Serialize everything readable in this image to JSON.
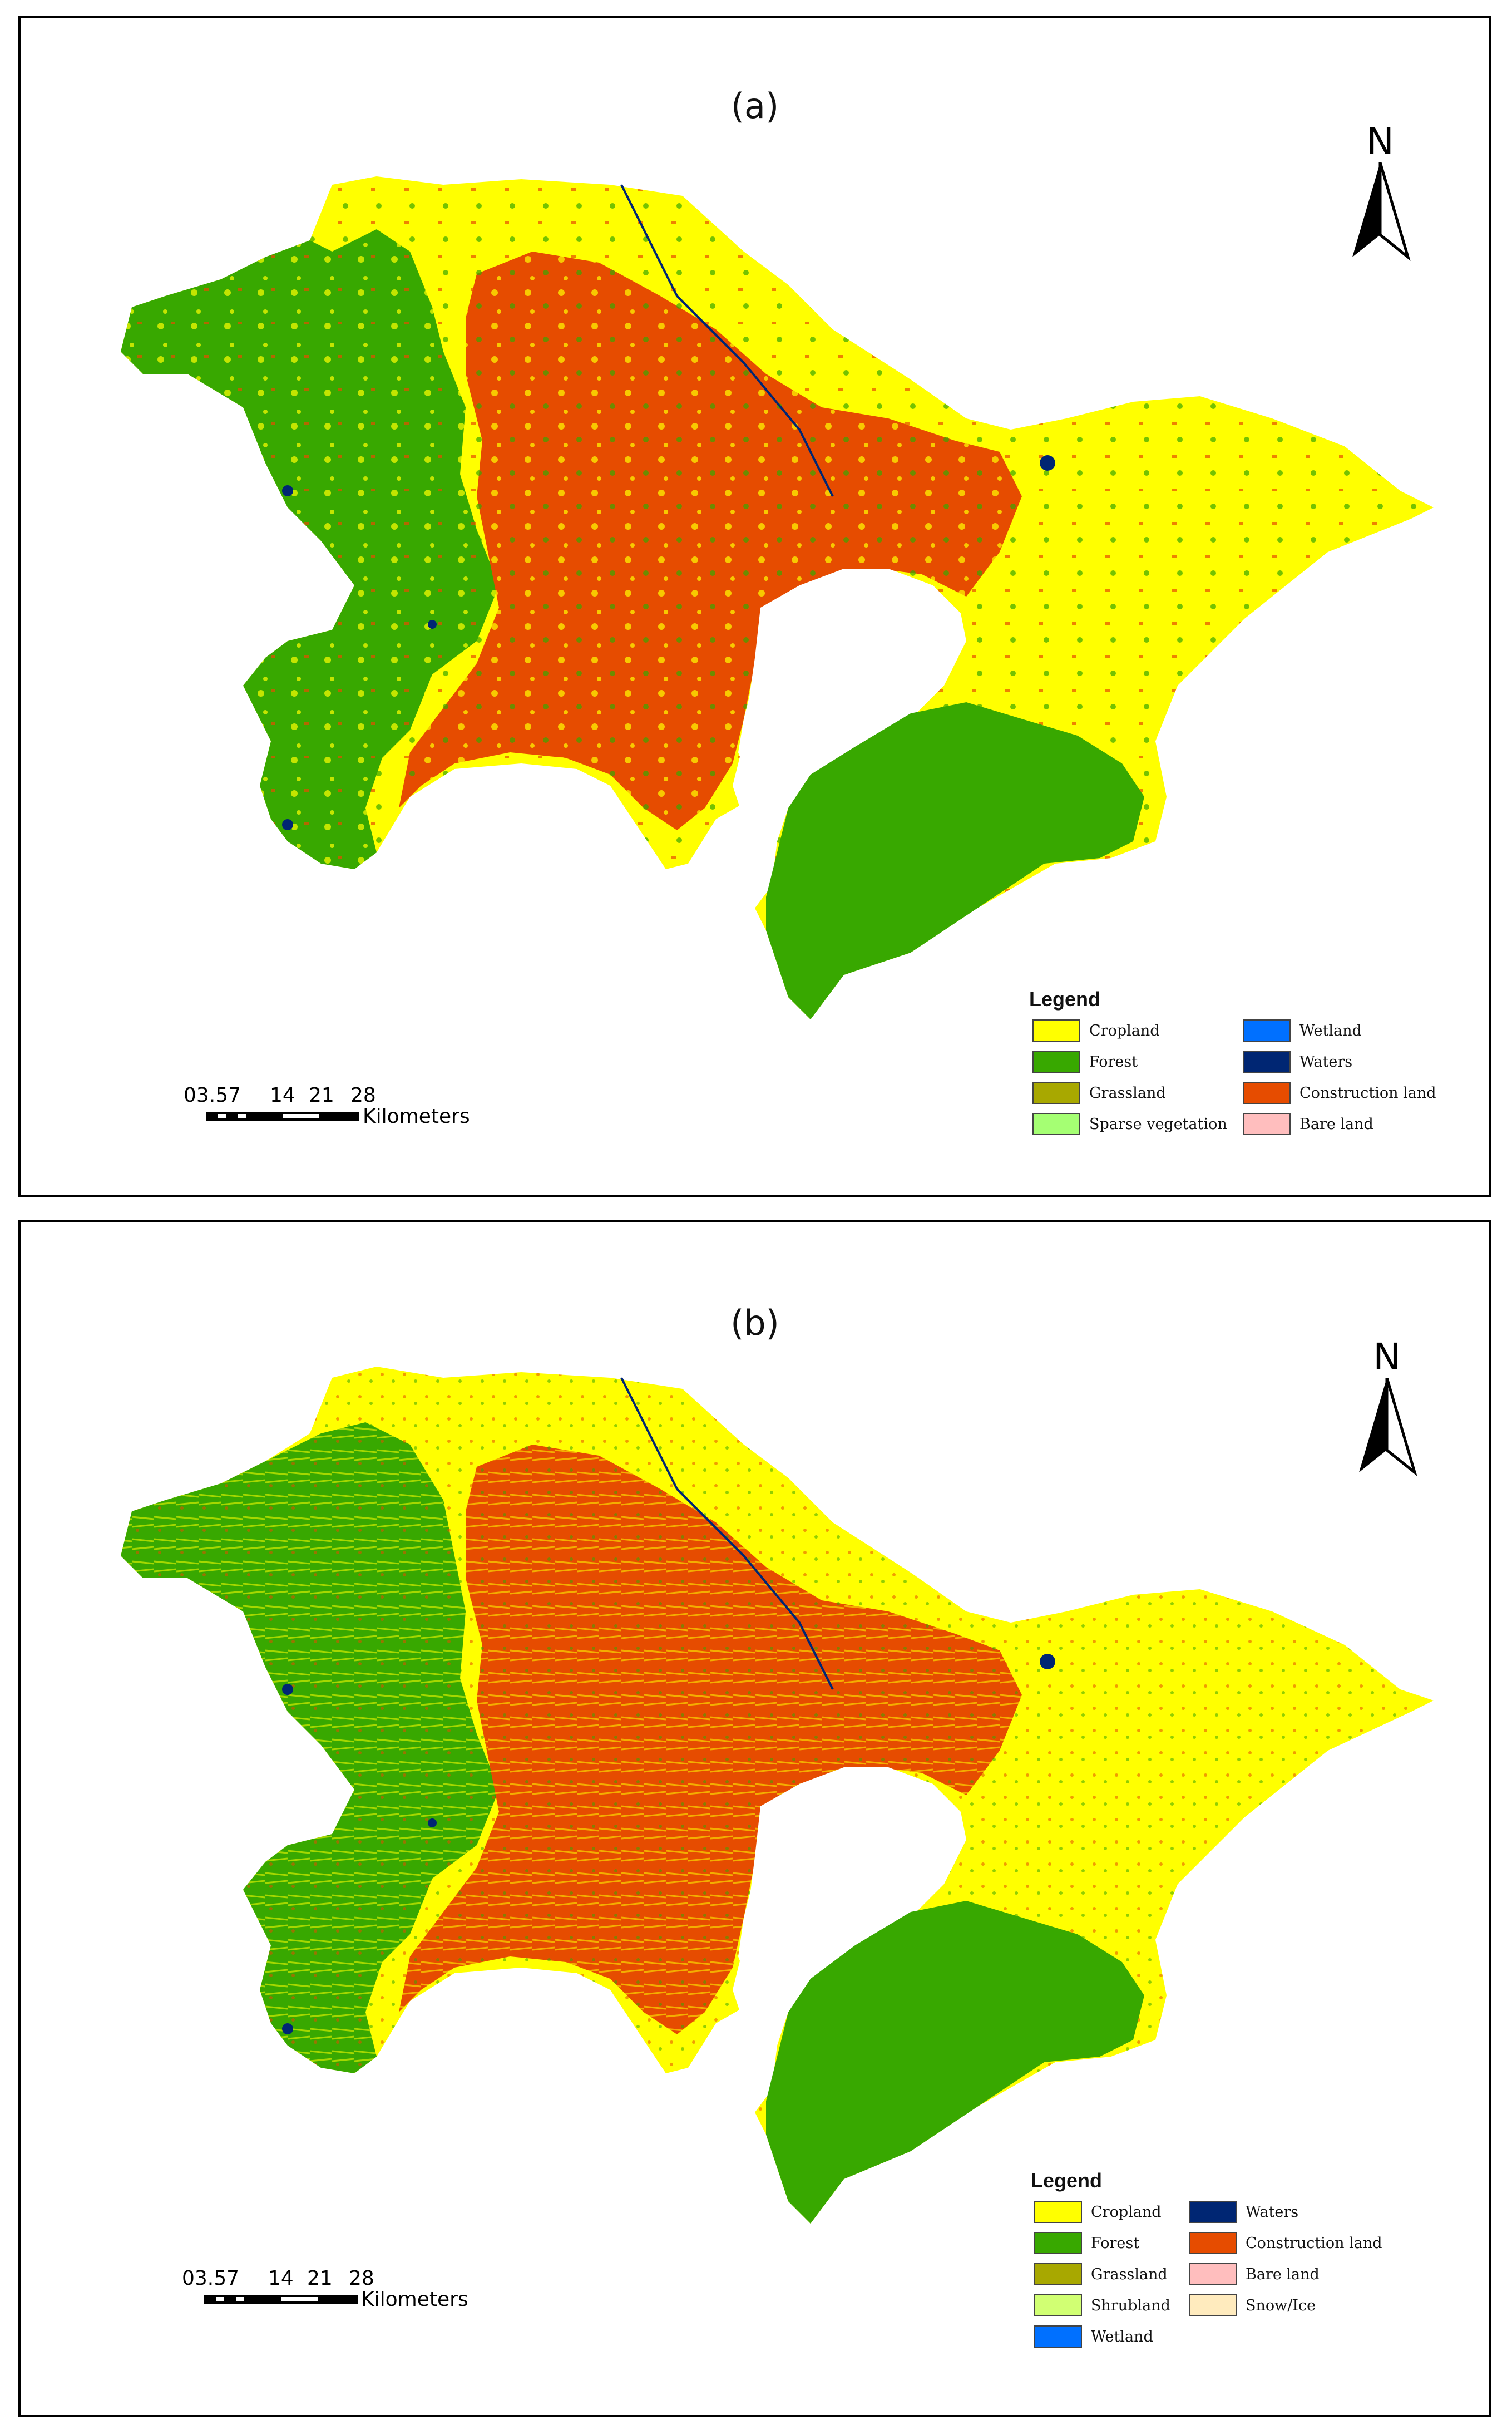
{
  "panels": [
    {
      "label": "(a)",
      "north_label": "N",
      "scale": {
        "ticks": [
          "03.57",
          "14",
          "21",
          "28"
        ],
        "unit": "Kilometers"
      },
      "legend": {
        "title": "Legend",
        "items": [
          {
            "label": "Cropland",
            "color": "#ffff00"
          },
          {
            "label": "Forest",
            "color": "#38a800"
          },
          {
            "label": "Grassland",
            "color": "#a8a800"
          },
          {
            "label": "Sparse vegetation",
            "color": "#a5ff73"
          },
          {
            "label": "Wetland",
            "color": "#0070ff"
          },
          {
            "label": "Waters",
            "color": "#002673"
          },
          {
            "label": "Construction land",
            "color": "#e64c00"
          },
          {
            "label": "Bare land",
            "color": "#ffbebe"
          }
        ]
      }
    },
    {
      "label": "(b)",
      "north_label": "N",
      "scale": {
        "ticks": [
          "03.57",
          "14",
          "21",
          "28"
        ],
        "unit": "Kilometers"
      },
      "legend": {
        "title": "Legend",
        "items": [
          {
            "label": "Cropland",
            "color": "#ffff00"
          },
          {
            "label": "Forest",
            "color": "#38a800"
          },
          {
            "label": "Grassland",
            "color": "#a8a800"
          },
          {
            "label": "Shrubland",
            "color": "#d1ff73"
          },
          {
            "label": "Wetland",
            "color": "#0070ff"
          },
          {
            "label": "Waters",
            "color": "#002673"
          },
          {
            "label": "Construction land",
            "color": "#e64c00"
          },
          {
            "label": "Bare land",
            "color": "#ffbebe"
          },
          {
            "label": "Snow/Ice",
            "color": "#ffebbe"
          }
        ]
      }
    }
  ]
}
